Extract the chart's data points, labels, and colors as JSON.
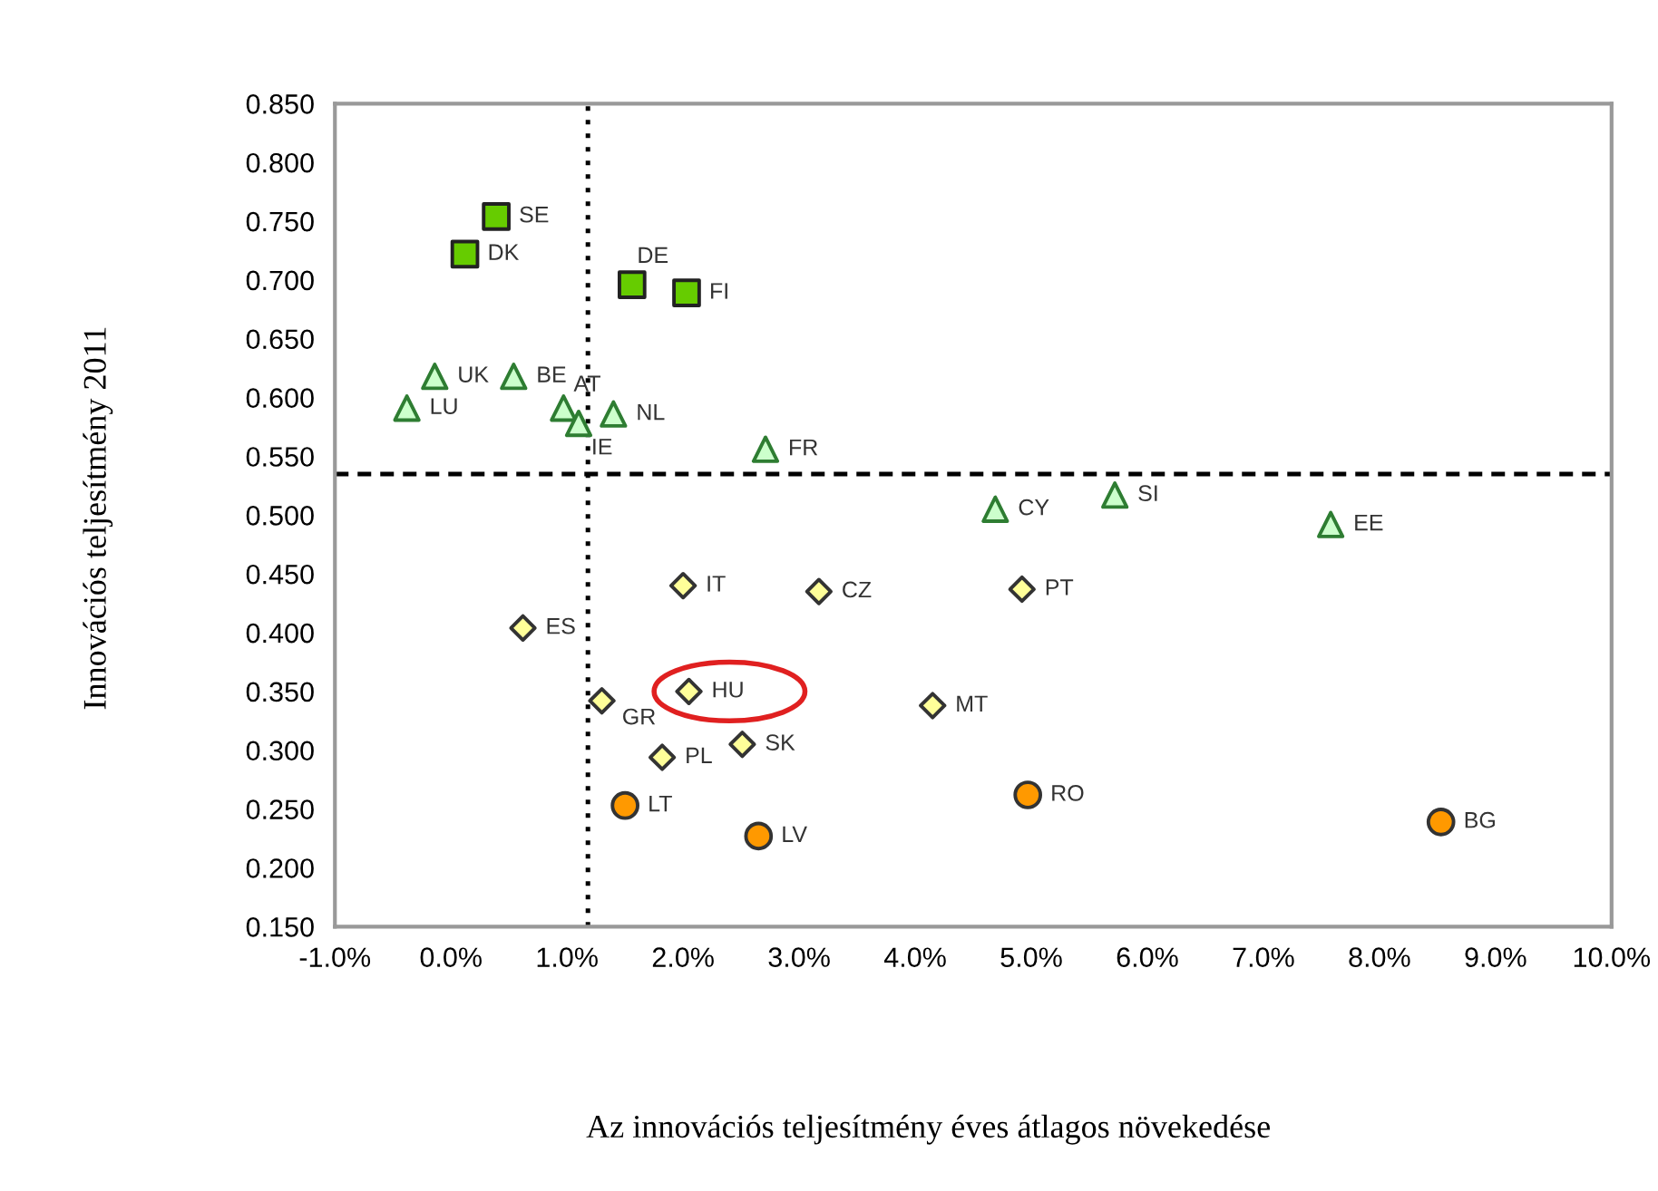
{
  "chart_data": {
    "type": "scatter",
    "xlabel": "Az innovációs teljesítmény éves átlagos növekedése",
    "ylabel": "Innovációs teljesítmény 2011",
    "series": [
      {
        "color": "#66cc00",
        "marker": "square",
        "x": [
          0.39,
          0.12,
          1.56,
          2.03
        ],
        "values": [
          0.754,
          0.722,
          0.696,
          0.689
        ]
      },
      {
        "color": "#ccffcc",
        "marker": "triangle",
        "x": [
          -0.14,
          0.54,
          -0.38,
          0.97,
          1.1,
          1.4,
          2.71,
          4.69,
          5.72,
          7.58
        ],
        "values": [
          0.618,
          0.618,
          0.591,
          0.591,
          0.578,
          0.586,
          0.556,
          0.505,
          0.517,
          0.492
        ]
      },
      {
        "color": "#ffff99",
        "marker": "diamond",
        "x": [
          2.0,
          3.17,
          4.92,
          0.62,
          2.05,
          1.3,
          4.15,
          2.51,
          1.82
        ],
        "values": [
          0.44,
          0.435,
          0.437,
          0.404,
          0.35,
          0.342,
          0.338,
          0.305,
          0.294
        ]
      },
      {
        "color": "#ff9900",
        "marker": "circle",
        "x": [
          1.5,
          2.65,
          4.97,
          8.53
        ],
        "values": [
          0.253,
          0.227,
          0.262,
          0.239
        ]
      }
    ],
    "annotations": [
      {
        "text": "SE",
        "x": 0.39,
        "y": 0.754
      },
      {
        "text": "DK",
        "x": 0.12,
        "y": 0.722
      },
      {
        "text": "DE",
        "x": 1.56,
        "y": 0.696
      },
      {
        "text": "FI",
        "x": 2.03,
        "y": 0.689
      },
      {
        "text": "UK",
        "x": -0.14,
        "y": 0.618
      },
      {
        "text": "BE",
        "x": 0.54,
        "y": 0.618
      },
      {
        "text": "LU",
        "x": -0.38,
        "y": 0.591
      },
      {
        "text": "AT",
        "x": 0.97,
        "y": 0.591
      },
      {
        "text": "IE",
        "x": 1.1,
        "y": 0.578
      },
      {
        "text": "NL",
        "x": 1.4,
        "y": 0.586
      },
      {
        "text": "FR",
        "x": 2.71,
        "y": 0.556
      },
      {
        "text": "CY",
        "x": 4.69,
        "y": 0.505
      },
      {
        "text": "SI",
        "x": 5.72,
        "y": 0.517
      },
      {
        "text": "EE",
        "x": 7.58,
        "y": 0.492
      },
      {
        "text": "IT",
        "x": 2.0,
        "y": 0.44
      },
      {
        "text": "CZ",
        "x": 3.17,
        "y": 0.435
      },
      {
        "text": "PT",
        "x": 4.92,
        "y": 0.437
      },
      {
        "text": "ES",
        "x": 0.62,
        "y": 0.404
      },
      {
        "text": "HU",
        "x": 2.05,
        "y": 0.35
      },
      {
        "text": "GR",
        "x": 1.3,
        "y": 0.342
      },
      {
        "text": "MT",
        "x": 4.15,
        "y": 0.338
      },
      {
        "text": "SK",
        "x": 2.51,
        "y": 0.305
      },
      {
        "text": "PL",
        "x": 1.82,
        "y": 0.294
      },
      {
        "text": "LT",
        "x": 1.5,
        "y": 0.253
      },
      {
        "text": "LV",
        "x": 2.65,
        "y": 0.227
      },
      {
        "text": "RO",
        "x": 4.97,
        "y": 0.262
      },
      {
        "text": "BG",
        "x": 8.53,
        "y": 0.239
      }
    ],
    "ref_lines": [
      {
        "axis": "x",
        "value": 1.18,
        "line_style": "dotted",
        "color": "#000000"
      },
      {
        "axis": "y",
        "value": 0.535,
        "line_style": "dashed",
        "color": "#000000"
      }
    ],
    "xlim": [
      -1,
      10
    ],
    "xticks": [
      {
        "value": -1,
        "label": "-1.0%"
      },
      {
        "value": 0,
        "label": "0.0%"
      },
      {
        "value": 1,
        "label": "1.0%"
      },
      {
        "value": 2,
        "label": "2.0%"
      },
      {
        "value": 3,
        "label": "3.0%"
      },
      {
        "value": 4,
        "label": "4.0%"
      },
      {
        "value": 5,
        "label": "5.0%"
      },
      {
        "value": 6,
        "label": "6.0%"
      },
      {
        "value": 7,
        "label": "7.0%"
      },
      {
        "value": 8,
        "label": "8.0%"
      },
      {
        "value": 9,
        "label": "9.0%"
      },
      {
        "value": 10,
        "label": "10.0%"
      }
    ],
    "ylim": [
      0.15,
      0.85
    ],
    "yticks": [
      {
        "value": 0.15,
        "label": "0.150"
      },
      {
        "value": 0.2,
        "label": "0.200"
      },
      {
        "value": 0.25,
        "label": "0.250"
      },
      {
        "value": 0.3,
        "label": "0.300"
      },
      {
        "value": 0.35,
        "label": "0.350"
      },
      {
        "value": 0.4,
        "label": "0.400"
      },
      {
        "value": 0.45,
        "label": "0.450"
      },
      {
        "value": 0.5,
        "label": "0.500"
      },
      {
        "value": 0.55,
        "label": "0.550"
      },
      {
        "value": 0.6,
        "label": "0.600"
      },
      {
        "value": 0.65,
        "label": "0.650"
      },
      {
        "value": 0.7,
        "label": "0.700"
      },
      {
        "value": 0.75,
        "label": "0.750"
      },
      {
        "value": 0.8,
        "label": "0.800"
      },
      {
        "value": 0.85,
        "label": "0.850"
      }
    ],
    "grid": false,
    "legend": false
  }
}
